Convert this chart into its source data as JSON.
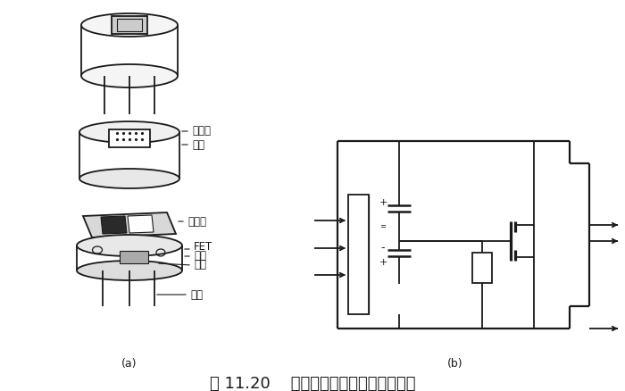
{
  "title": "图 11.20    热释电人体红外传感器的结构",
  "label_a": "(a)",
  "label_b": "(b)",
  "bg_color": "#ffffff",
  "line_color": "#1a1a1a",
  "labels": {
    "filter": "滤光片",
    "cap": "管帽",
    "element": "敏感元",
    "fet": "FET",
    "socket": "管座",
    "resistor": "高阻",
    "lead": "引线"
  },
  "font_size_title": 13,
  "font_size_label": 8.5,
  "font_size_sub": 9
}
